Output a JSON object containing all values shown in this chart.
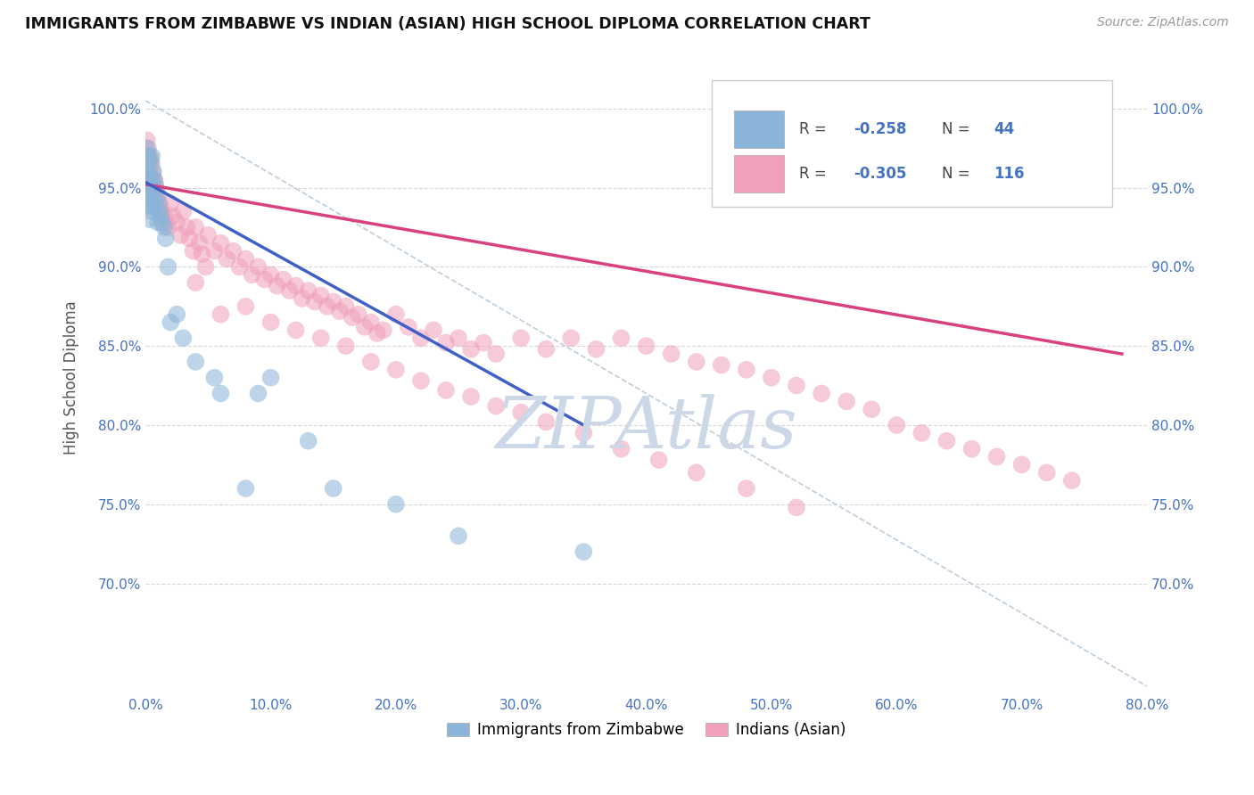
{
  "title": "IMMIGRANTS FROM ZIMBABWE VS INDIAN (ASIAN) HIGH SCHOOL DIPLOMA CORRELATION CHART",
  "source": "Source: ZipAtlas.com",
  "ylabel": "High School Diploma",
  "xlim": [
    0.0,
    0.8
  ],
  "ylim": [
    0.63,
    1.03
  ],
  "xtick_vals": [
    0.0,
    0.1,
    0.2,
    0.3,
    0.4,
    0.5,
    0.6,
    0.7,
    0.8
  ],
  "xtick_labels": [
    "0.0%",
    "10.0%",
    "20.0%",
    "30.0%",
    "40.0%",
    "50.0%",
    "60.0%",
    "70.0%",
    "80.0%"
  ],
  "ytick_vals": [
    0.7,
    0.75,
    0.8,
    0.85,
    0.9,
    0.95,
    1.0
  ],
  "ytick_labels": [
    "70.0%",
    "75.0%",
    "80.0%",
    "85.0%",
    "90.0%",
    "95.0%",
    "100.0%"
  ],
  "r_zimbabwe": -0.258,
  "n_zimbabwe": 44,
  "r_indian": -0.305,
  "n_indian": 116,
  "color_zimbabwe": "#8ab4d8",
  "color_indian": "#f0a0b8",
  "color_line_zimbabwe": "#4060c8",
  "color_line_indian": "#d84080",
  "color_dashed": "#b8c8d8",
  "watermark": "ZIPAtlas",
  "watermark_color": "#ccd8e8",
  "legend_label_zimbabwe": "Immigrants from Zimbabwe",
  "legend_label_indian": "Indians (Asian)",
  "zim_scatter_x": [
    0.001,
    0.001,
    0.002,
    0.002,
    0.002,
    0.003,
    0.003,
    0.003,
    0.003,
    0.004,
    0.004,
    0.004,
    0.005,
    0.005,
    0.005,
    0.006,
    0.006,
    0.007,
    0.007,
    0.008,
    0.008,
    0.009,
    0.01,
    0.01,
    0.011,
    0.012,
    0.013,
    0.015,
    0.016,
    0.018,
    0.02,
    0.025,
    0.03,
    0.04,
    0.055,
    0.06,
    0.08,
    0.09,
    0.1,
    0.13,
    0.15,
    0.2,
    0.25,
    0.35
  ],
  "zim_scatter_y": [
    0.975,
    0.96,
    0.97,
    0.955,
    0.945,
    0.968,
    0.95,
    0.94,
    0.93,
    0.965,
    0.952,
    0.938,
    0.97,
    0.955,
    0.935,
    0.96,
    0.948,
    0.955,
    0.942,
    0.95,
    0.938,
    0.945,
    0.94,
    0.928,
    0.935,
    0.932,
    0.928,
    0.925,
    0.918,
    0.9,
    0.865,
    0.87,
    0.855,
    0.84,
    0.83,
    0.82,
    0.76,
    0.82,
    0.83,
    0.79,
    0.76,
    0.75,
    0.73,
    0.72
  ],
  "ind_scatter_x": [
    0.001,
    0.002,
    0.002,
    0.003,
    0.003,
    0.004,
    0.004,
    0.005,
    0.005,
    0.006,
    0.006,
    0.007,
    0.007,
    0.008,
    0.009,
    0.01,
    0.011,
    0.012,
    0.013,
    0.015,
    0.016,
    0.018,
    0.02,
    0.022,
    0.025,
    0.028,
    0.03,
    0.033,
    0.035,
    0.038,
    0.04,
    0.043,
    0.045,
    0.048,
    0.05,
    0.055,
    0.06,
    0.065,
    0.07,
    0.075,
    0.08,
    0.085,
    0.09,
    0.095,
    0.1,
    0.105,
    0.11,
    0.115,
    0.12,
    0.125,
    0.13,
    0.135,
    0.14,
    0.145,
    0.15,
    0.155,
    0.16,
    0.165,
    0.17,
    0.175,
    0.18,
    0.185,
    0.19,
    0.2,
    0.21,
    0.22,
    0.23,
    0.24,
    0.25,
    0.26,
    0.27,
    0.28,
    0.3,
    0.32,
    0.34,
    0.36,
    0.38,
    0.4,
    0.42,
    0.44,
    0.46,
    0.48,
    0.5,
    0.52,
    0.54,
    0.56,
    0.58,
    0.6,
    0.62,
    0.64,
    0.66,
    0.68,
    0.7,
    0.72,
    0.74,
    0.04,
    0.06,
    0.08,
    0.1,
    0.12,
    0.14,
    0.16,
    0.18,
    0.2,
    0.22,
    0.24,
    0.26,
    0.28,
    0.3,
    0.32,
    0.35,
    0.38,
    0.41,
    0.44,
    0.48,
    0.52
  ],
  "ind_scatter_y": [
    0.98,
    0.975,
    0.965,
    0.97,
    0.958,
    0.968,
    0.955,
    0.965,
    0.952,
    0.96,
    0.948,
    0.955,
    0.945,
    0.952,
    0.948,
    0.945,
    0.94,
    0.938,
    0.935,
    0.932,
    0.928,
    0.925,
    0.94,
    0.932,
    0.928,
    0.92,
    0.935,
    0.925,
    0.918,
    0.91,
    0.925,
    0.915,
    0.908,
    0.9,
    0.92,
    0.91,
    0.915,
    0.905,
    0.91,
    0.9,
    0.905,
    0.895,
    0.9,
    0.892,
    0.895,
    0.888,
    0.892,
    0.885,
    0.888,
    0.88,
    0.885,
    0.878,
    0.882,
    0.875,
    0.878,
    0.872,
    0.875,
    0.868,
    0.87,
    0.862,
    0.865,
    0.858,
    0.86,
    0.87,
    0.862,
    0.855,
    0.86,
    0.852,
    0.855,
    0.848,
    0.852,
    0.845,
    0.855,
    0.848,
    0.855,
    0.848,
    0.855,
    0.85,
    0.845,
    0.84,
    0.838,
    0.835,
    0.83,
    0.825,
    0.82,
    0.815,
    0.81,
    0.8,
    0.795,
    0.79,
    0.785,
    0.78,
    0.775,
    0.77,
    0.765,
    0.89,
    0.87,
    0.875,
    0.865,
    0.86,
    0.855,
    0.85,
    0.84,
    0.835,
    0.828,
    0.822,
    0.818,
    0.812,
    0.808,
    0.802,
    0.795,
    0.785,
    0.778,
    0.77,
    0.76,
    0.748
  ]
}
